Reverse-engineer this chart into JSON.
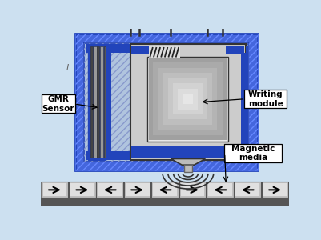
{
  "bg_color": "#cce0f0",
  "blue_outer": "#3355cc",
  "blue_dark": "#2244bb",
  "blue_mid": "#4466dd",
  "gray1": "#333333",
  "gray2": "#666666",
  "gray3": "#999999",
  "gray4": "#bbbbbb",
  "gray5": "#cccccc",
  "gray6": "#dddddd",
  "gray7": "#eeeeee",
  "white": "#ffffff",
  "black": "#000000",
  "media_dark": "#888888",
  "media_bottom": "#666666",
  "arrow_directions": [
    1,
    1,
    -1,
    1,
    -1,
    1,
    -1,
    -1,
    1
  ],
  "n_cells": 9,
  "label_gmr": "GMR\nSensor",
  "label_writing": "Writing\nmodule",
  "label_media": "Magnetic\nmedia",
  "label_i": "I"
}
